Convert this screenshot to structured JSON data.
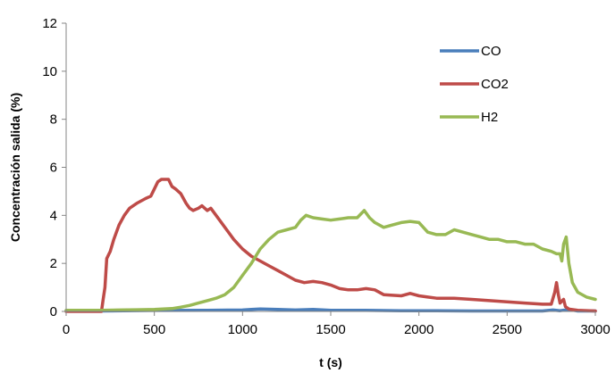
{
  "chart_data": {
    "type": "line",
    "title": "",
    "xlabel": "t (s)",
    "ylabel": "Concentración salida (%)",
    "xlim": [
      0,
      3000
    ],
    "ylim": [
      0,
      12
    ],
    "xticks": [
      0,
      500,
      1000,
      1500,
      2000,
      2500,
      3000
    ],
    "yticks": [
      0,
      2,
      4,
      6,
      8,
      10,
      12
    ],
    "grid": false,
    "legend_position": "top-right",
    "series": [
      {
        "name": "CO",
        "color": "#4a7ebb",
        "x": [
          0,
          200,
          500,
          800,
          1000,
          1050,
          1100,
          1200,
          1300,
          1400,
          1500,
          1700,
          1900,
          2100,
          2300,
          2500,
          2700,
          2760,
          2800,
          2850,
          2900,
          3000
        ],
        "y": [
          0.02,
          0.02,
          0.04,
          0.05,
          0.06,
          0.08,
          0.1,
          0.08,
          0.06,
          0.08,
          0.05,
          0.05,
          0.03,
          0.03,
          0.02,
          0.02,
          0.02,
          0.06,
          0.03,
          0.08,
          0.02,
          0.02
        ]
      },
      {
        "name": "CO2",
        "color": "#be4b48",
        "x": [
          0,
          200,
          210,
          220,
          230,
          250,
          270,
          300,
          330,
          360,
          400,
          450,
          480,
          500,
          520,
          540,
          560,
          580,
          600,
          620,
          650,
          680,
          700,
          720,
          750,
          770,
          800,
          820,
          850,
          900,
          950,
          1000,
          1050,
          1100,
          1150,
          1200,
          1250,
          1300,
          1350,
          1400,
          1450,
          1500,
          1550,
          1600,
          1650,
          1700,
          1750,
          1800,
          1900,
          1950,
          2000,
          2050,
          2100,
          2200,
          2300,
          2400,
          2500,
          2600,
          2700,
          2750,
          2770,
          2780,
          2790,
          2800,
          2820,
          2830,
          2850,
          2900,
          3000
        ],
        "y": [
          0.0,
          0.0,
          0.5,
          1.0,
          2.2,
          2.5,
          3.0,
          3.6,
          4.0,
          4.3,
          4.5,
          4.7,
          4.8,
          5.1,
          5.4,
          5.5,
          5.5,
          5.5,
          5.2,
          5.1,
          4.9,
          4.5,
          4.3,
          4.2,
          4.3,
          4.4,
          4.2,
          4.3,
          4.0,
          3.5,
          3.0,
          2.6,
          2.3,
          2.1,
          1.9,
          1.7,
          1.5,
          1.3,
          1.2,
          1.25,
          1.2,
          1.1,
          0.95,
          0.9,
          0.9,
          0.95,
          0.9,
          0.7,
          0.65,
          0.75,
          0.65,
          0.6,
          0.55,
          0.55,
          0.5,
          0.45,
          0.4,
          0.35,
          0.3,
          0.3,
          0.8,
          1.2,
          0.7,
          0.35,
          0.5,
          0.2,
          0.1,
          0.05,
          0.02
        ]
      },
      {
        "name": "H2",
        "color": "#98b954",
        "x": [
          0,
          200,
          300,
          400,
          500,
          550,
          600,
          650,
          700,
          750,
          800,
          850,
          900,
          950,
          1000,
          1050,
          1100,
          1150,
          1200,
          1250,
          1300,
          1330,
          1360,
          1400,
          1450,
          1500,
          1550,
          1600,
          1650,
          1690,
          1720,
          1750,
          1800,
          1850,
          1900,
          1950,
          2000,
          2050,
          2100,
          2150,
          2200,
          2250,
          2300,
          2350,
          2400,
          2450,
          2500,
          2550,
          2600,
          2650,
          2700,
          2750,
          2780,
          2800,
          2810,
          2820,
          2835,
          2850,
          2870,
          2900,
          2950,
          3000
        ],
        "y": [
          0.05,
          0.05,
          0.06,
          0.07,
          0.08,
          0.1,
          0.12,
          0.18,
          0.25,
          0.35,
          0.45,
          0.55,
          0.7,
          1.0,
          1.5,
          2.0,
          2.6,
          3.0,
          3.3,
          3.4,
          3.5,
          3.8,
          4.0,
          3.9,
          3.85,
          3.8,
          3.85,
          3.9,
          3.9,
          4.2,
          3.9,
          3.7,
          3.5,
          3.6,
          3.7,
          3.75,
          3.7,
          3.3,
          3.2,
          3.2,
          3.4,
          3.3,
          3.2,
          3.1,
          3.0,
          3.0,
          2.9,
          2.9,
          2.8,
          2.8,
          2.6,
          2.5,
          2.4,
          2.4,
          2.1,
          2.8,
          3.1,
          2.0,
          1.2,
          0.8,
          0.6,
          0.5
        ]
      }
    ]
  }
}
